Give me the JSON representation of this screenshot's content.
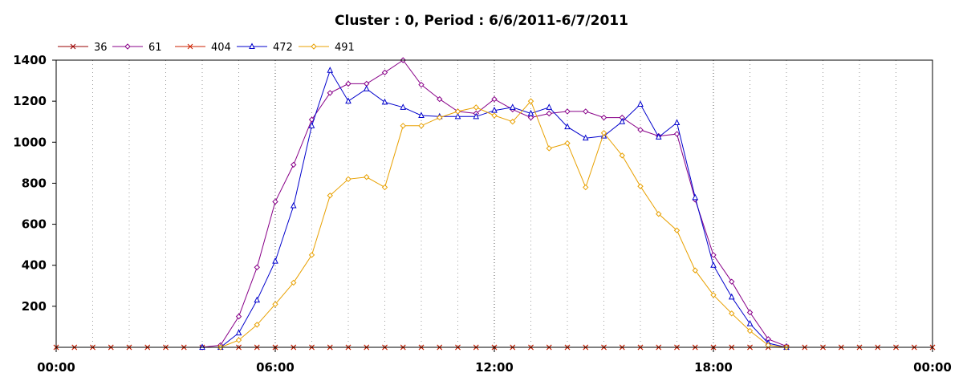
{
  "chart_data": {
    "type": "line",
    "title": "Cluster : 0, Period : 6/6/2011-6/7/2011",
    "xlabel": "",
    "ylabel": "",
    "x_range_hours": [
      0,
      24
    ],
    "ylim": [
      0,
      1400
    ],
    "x_ticks": [
      "00:00",
      "06:00",
      "12:00",
      "18:00",
      "00:00"
    ],
    "y_ticks": [
      200,
      400,
      600,
      800,
      1000,
      1200,
      1400
    ],
    "grid": "vertical dotted",
    "legend_position": "top-left",
    "x_hours": [
      0,
      0.5,
      1,
      1.5,
      2,
      2.5,
      3,
      3.5,
      4,
      4.5,
      5,
      5.5,
      6,
      6.5,
      7,
      7.5,
      8,
      8.5,
      9,
      9.5,
      10,
      10.5,
      11,
      11.5,
      12,
      12.5,
      13,
      13.5,
      14,
      14.5,
      15,
      15.5,
      16,
      16.5,
      17,
      17.5,
      18,
      18.5,
      19,
      19.5,
      20,
      20.5,
      21,
      21.5,
      22,
      22.5,
      23,
      23.5,
      24
    ],
    "series": [
      {
        "name": "36",
        "color": "#990000",
        "marker": "x",
        "values": [
          0,
          0,
          0,
          0,
          0,
          0,
          0,
          0,
          0,
          0,
          0,
          0,
          0,
          0,
          0,
          0,
          0,
          0,
          0,
          0,
          0,
          0,
          0,
          0,
          0,
          0,
          0,
          0,
          0,
          0,
          0,
          0,
          0,
          0,
          0,
          0,
          0,
          0,
          0,
          0,
          0,
          0,
          0,
          0,
          0,
          0,
          0,
          0,
          0
        ]
      },
      {
        "name": "61",
        "color": "#880088",
        "marker": "diamond",
        "values": [
          null,
          null,
          null,
          null,
          null,
          null,
          null,
          null,
          0,
          10,
          150,
          390,
          710,
          890,
          1110,
          1240,
          1285,
          1285,
          1340,
          1400,
          1280,
          1210,
          1150,
          1140,
          1210,
          1160,
          1120,
          1140,
          1150,
          1150,
          1120,
          1120,
          1060,
          1030,
          1040,
          720,
          450,
          320,
          170,
          40,
          5,
          null,
          null,
          null,
          null,
          null,
          null,
          null,
          null
        ]
      },
      {
        "name": "404",
        "color": "#cc2200",
        "marker": "x",
        "values": [
          0,
          0,
          0,
          0,
          0,
          0,
          0,
          0,
          0,
          0,
          0,
          0,
          0,
          0,
          0,
          0,
          0,
          0,
          0,
          0,
          0,
          0,
          0,
          0,
          0,
          0,
          0,
          0,
          0,
          0,
          0,
          0,
          0,
          0,
          0,
          0,
          0,
          0,
          0,
          0,
          0,
          0,
          0,
          0,
          0,
          0,
          0,
          0,
          0
        ]
      },
      {
        "name": "472",
        "color": "#0000cc",
        "marker": "triangle",
        "values": [
          null,
          null,
          null,
          null,
          null,
          null,
          null,
          null,
          0,
          0,
          70,
          230,
          420,
          690,
          1080,
          1350,
          1200,
          1260,
          1195,
          1170,
          1130,
          1125,
          1125,
          1125,
          1155,
          1170,
          1140,
          1170,
          1075,
          1020,
          1030,
          1100,
          1185,
          1025,
          1095,
          730,
          400,
          245,
          115,
          20,
          0,
          null,
          null,
          null,
          null,
          null,
          null,
          null,
          null
        ]
      },
      {
        "name": "491",
        "color": "#e8a000",
        "marker": "diamond",
        "values": [
          null,
          null,
          null,
          null,
          null,
          null,
          null,
          null,
          null,
          0,
          35,
          110,
          210,
          315,
          450,
          740,
          820,
          830,
          780,
          1080,
          1080,
          1120,
          1150,
          1170,
          1130,
          1100,
          1200,
          970,
          995,
          780,
          1045,
          935,
          785,
          650,
          570,
          375,
          255,
          165,
          80,
          10,
          0,
          null,
          null,
          null,
          null,
          null,
          null,
          null,
          null
        ]
      }
    ]
  }
}
